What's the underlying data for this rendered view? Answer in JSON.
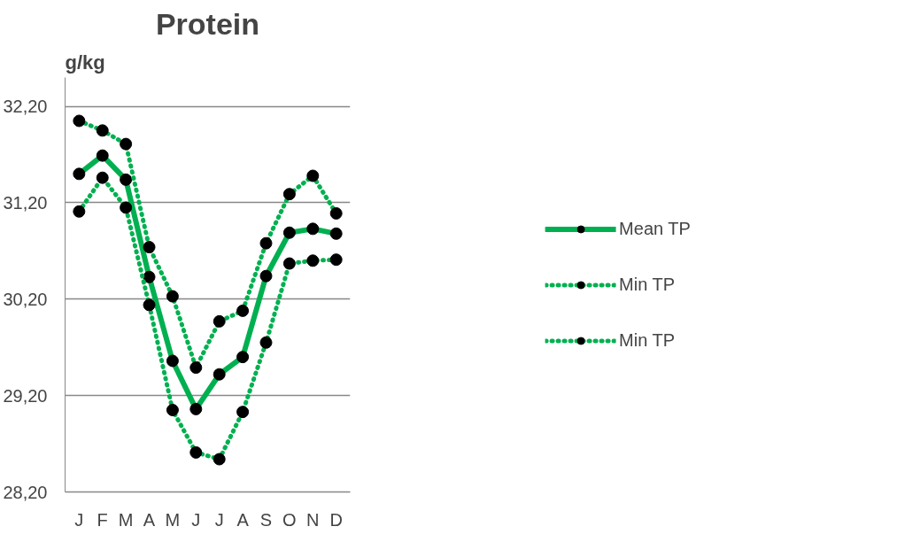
{
  "chart_data": {
    "type": "line",
    "title": "Protein",
    "ylabel": "g/kg",
    "categories": [
      "J",
      "F",
      "M",
      "A",
      "M",
      "J",
      "J",
      "A",
      "S",
      "O",
      "N",
      "D"
    ],
    "series": [
      {
        "name": "Mean TP",
        "color": "#00b050",
        "line_style": "solid",
        "values": [
          31.5,
          31.69,
          31.44,
          30.43,
          29.56,
          29.06,
          29.42,
          29.6,
          30.44,
          30.89,
          30.93,
          30.88
        ]
      },
      {
        "name": "Min TP",
        "color": "#00b050",
        "line_style": "dotted",
        "values": [
          32.05,
          31.95,
          31.81,
          30.74,
          30.23,
          29.49,
          29.97,
          30.08,
          30.78,
          31.29,
          31.48,
          31.09
        ]
      },
      {
        "name": "Min TP",
        "color": "#00b050",
        "line_style": "dotted",
        "values": [
          31.11,
          31.46,
          31.15,
          30.14,
          29.05,
          28.61,
          28.54,
          29.03,
          29.75,
          30.57,
          30.6,
          30.61
        ]
      }
    ],
    "ylim": [
      28.2,
      32.5
    ],
    "yticks": [
      {
        "value": 28.2,
        "label": "28,20"
      },
      {
        "value": 29.2,
        "label": "29,20"
      },
      {
        "value": 30.2,
        "label": "30,20"
      },
      {
        "value": 31.2,
        "label": "31,20"
      },
      {
        "value": 32.2,
        "label": "32,20"
      }
    ],
    "grid": "y",
    "legend": "right",
    "marker": "circle"
  }
}
